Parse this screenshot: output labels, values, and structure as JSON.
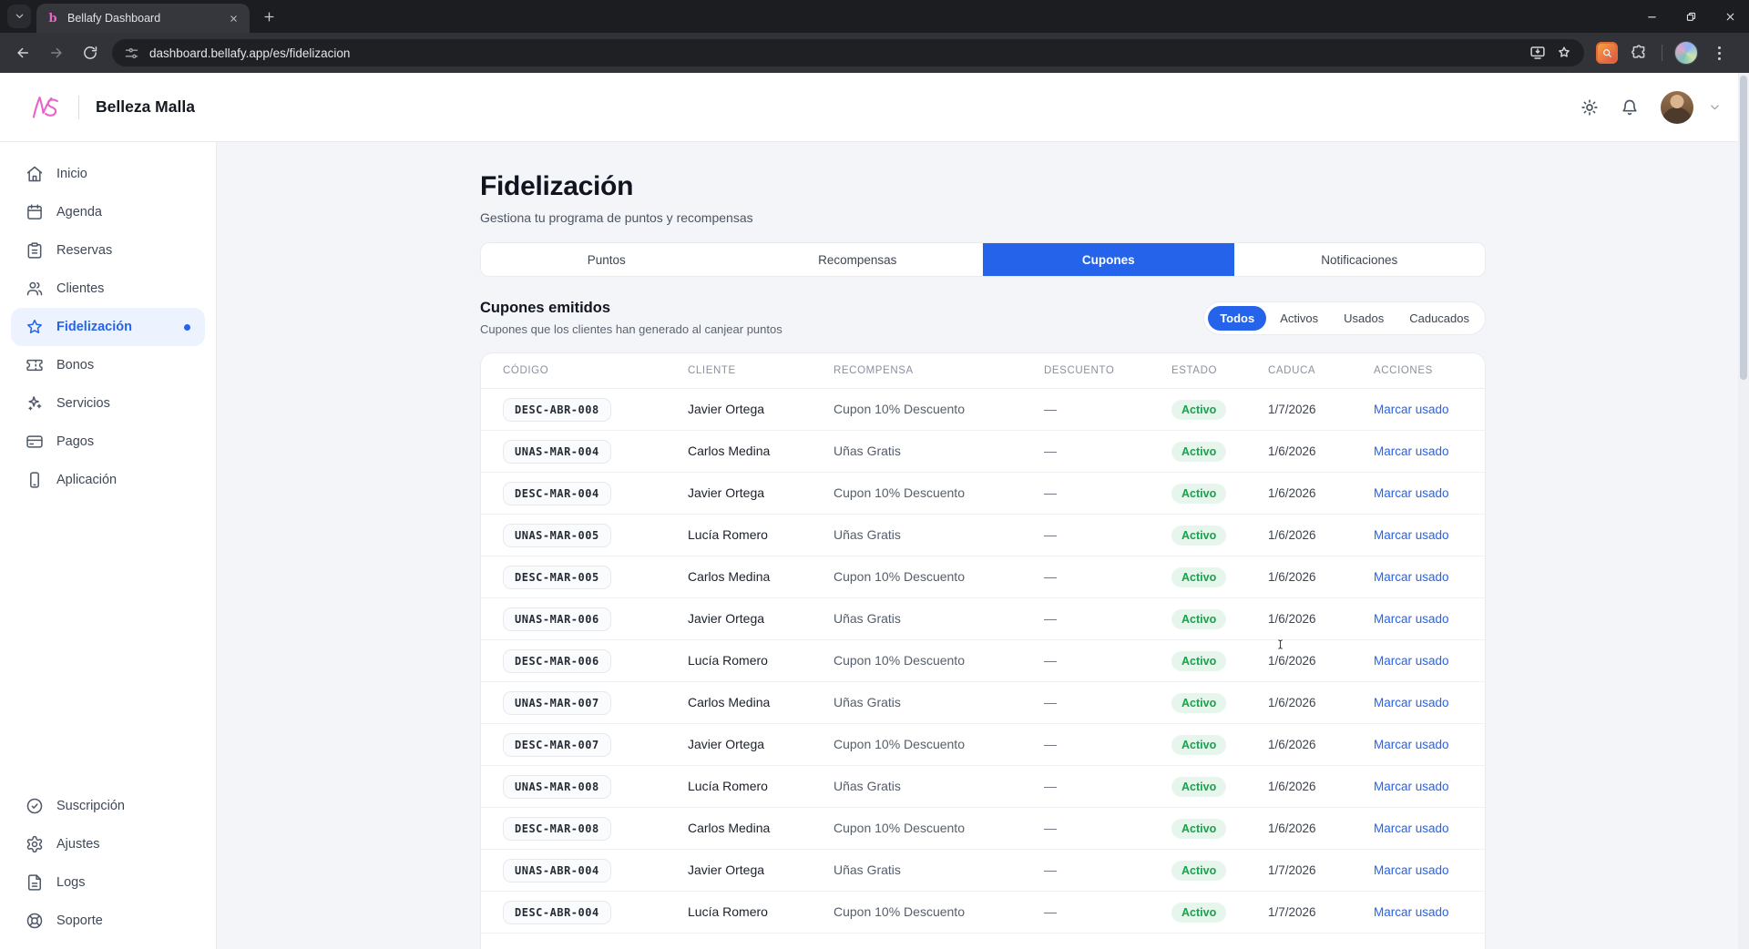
{
  "colors": {
    "accent": "#2563eb",
    "accent_light": "#edf3fe",
    "success_bg": "#e7f6ed",
    "success_text": "#16a34a",
    "brand_pink": "#ea63c8"
  },
  "browser": {
    "tab": {
      "title": "Bellafy Dashboard",
      "favicon_glyph": "b"
    },
    "toolbar": {
      "url": "dashboard.bellafy.app/es/fidelizacion"
    }
  },
  "header": {
    "brand": "Belleza Malla"
  },
  "sidebar": {
    "items": [
      {
        "label": "Inicio",
        "icon": "home-icon",
        "active": false
      },
      {
        "label": "Agenda",
        "icon": "calendar-icon",
        "active": false
      },
      {
        "label": "Reservas",
        "icon": "clipboard-icon",
        "active": false
      },
      {
        "label": "Clientes",
        "icon": "users-icon",
        "active": false
      },
      {
        "label": "Fidelización",
        "icon": "star-icon",
        "active": true,
        "dot": true
      },
      {
        "label": "Bonos",
        "icon": "ticket-icon",
        "active": false
      },
      {
        "label": "Servicios",
        "icon": "sparkles-icon",
        "active": false
      },
      {
        "label": "Pagos",
        "icon": "card-icon",
        "active": false
      },
      {
        "label": "Aplicación",
        "icon": "phone-icon",
        "active": false
      }
    ],
    "footer_items": [
      {
        "label": "Suscripción",
        "icon": "check-circle-icon"
      },
      {
        "label": "Ajustes",
        "icon": "gear-icon"
      },
      {
        "label": "Logs",
        "icon": "file-icon"
      },
      {
        "label": "Soporte",
        "icon": "lifebuoy-icon"
      }
    ]
  },
  "page": {
    "title": "Fidelización",
    "subtitle": "Gestiona tu programa de puntos y recompensas",
    "tabs": [
      {
        "label": "Puntos",
        "active": false
      },
      {
        "label": "Recompensas",
        "active": false
      },
      {
        "label": "Cupones",
        "active": true
      },
      {
        "label": "Notificaciones",
        "active": false
      }
    ],
    "section": {
      "title": "Cupones emitidos",
      "subtitle": "Cupones que los clientes han generado al canjear puntos"
    },
    "filters": {
      "options": [
        "Todos",
        "Activos",
        "Usados",
        "Caducados"
      ],
      "active": "Todos"
    },
    "table": {
      "columns": [
        "CÓDIGO",
        "CLIENTE",
        "RECOMPENSA",
        "DESCUENTO",
        "ESTADO",
        "CADUCA",
        "ACCIONES"
      ],
      "rows": [
        {
          "code": "DESC-ABR-008",
          "client": "Javier Ortega",
          "reward": "Cupon 10% Descuento",
          "discount": "—",
          "status": "Activo",
          "expires": "1/7/2026",
          "action": "Marcar usado"
        },
        {
          "code": "UNAS-MAR-004",
          "client": "Carlos Medina",
          "reward": "Uñas Gratis",
          "discount": "—",
          "status": "Activo",
          "expires": "1/6/2026",
          "action": "Marcar usado"
        },
        {
          "code": "DESC-MAR-004",
          "client": "Javier Ortega",
          "reward": "Cupon 10% Descuento",
          "discount": "—",
          "status": "Activo",
          "expires": "1/6/2026",
          "action": "Marcar usado"
        },
        {
          "code": "UNAS-MAR-005",
          "client": "Lucía Romero",
          "reward": "Uñas Gratis",
          "discount": "—",
          "status": "Activo",
          "expires": "1/6/2026",
          "action": "Marcar usado"
        },
        {
          "code": "DESC-MAR-005",
          "client": "Carlos Medina",
          "reward": "Cupon 10% Descuento",
          "discount": "—",
          "status": "Activo",
          "expires": "1/6/2026",
          "action": "Marcar usado"
        },
        {
          "code": "UNAS-MAR-006",
          "client": "Javier Ortega",
          "reward": "Uñas Gratis",
          "discount": "—",
          "status": "Activo",
          "expires": "1/6/2026",
          "action": "Marcar usado"
        },
        {
          "code": "DESC-MAR-006",
          "client": "Lucía Romero",
          "reward": "Cupon 10% Descuento",
          "discount": "—",
          "status": "Activo",
          "expires": "1/6/2026",
          "action": "Marcar usado"
        },
        {
          "code": "UNAS-MAR-007",
          "client": "Carlos Medina",
          "reward": "Uñas Gratis",
          "discount": "—",
          "status": "Activo",
          "expires": "1/6/2026",
          "action": "Marcar usado"
        },
        {
          "code": "DESC-MAR-007",
          "client": "Javier Ortega",
          "reward": "Cupon 10% Descuento",
          "discount": "—",
          "status": "Activo",
          "expires": "1/6/2026",
          "action": "Marcar usado"
        },
        {
          "code": "UNAS-MAR-008",
          "client": "Lucía Romero",
          "reward": "Uñas Gratis",
          "discount": "—",
          "status": "Activo",
          "expires": "1/6/2026",
          "action": "Marcar usado"
        },
        {
          "code": "DESC-MAR-008",
          "client": "Carlos Medina",
          "reward": "Cupon 10% Descuento",
          "discount": "—",
          "status": "Activo",
          "expires": "1/6/2026",
          "action": "Marcar usado"
        },
        {
          "code": "UNAS-ABR-004",
          "client": "Javier Ortega",
          "reward": "Uñas Gratis",
          "discount": "—",
          "status": "Activo",
          "expires": "1/7/2026",
          "action": "Marcar usado"
        },
        {
          "code": "DESC-ABR-004",
          "client": "Lucía Romero",
          "reward": "Cupon 10% Descuento",
          "discount": "—",
          "status": "Activo",
          "expires": "1/7/2026",
          "action": "Marcar usado"
        }
      ]
    }
  }
}
